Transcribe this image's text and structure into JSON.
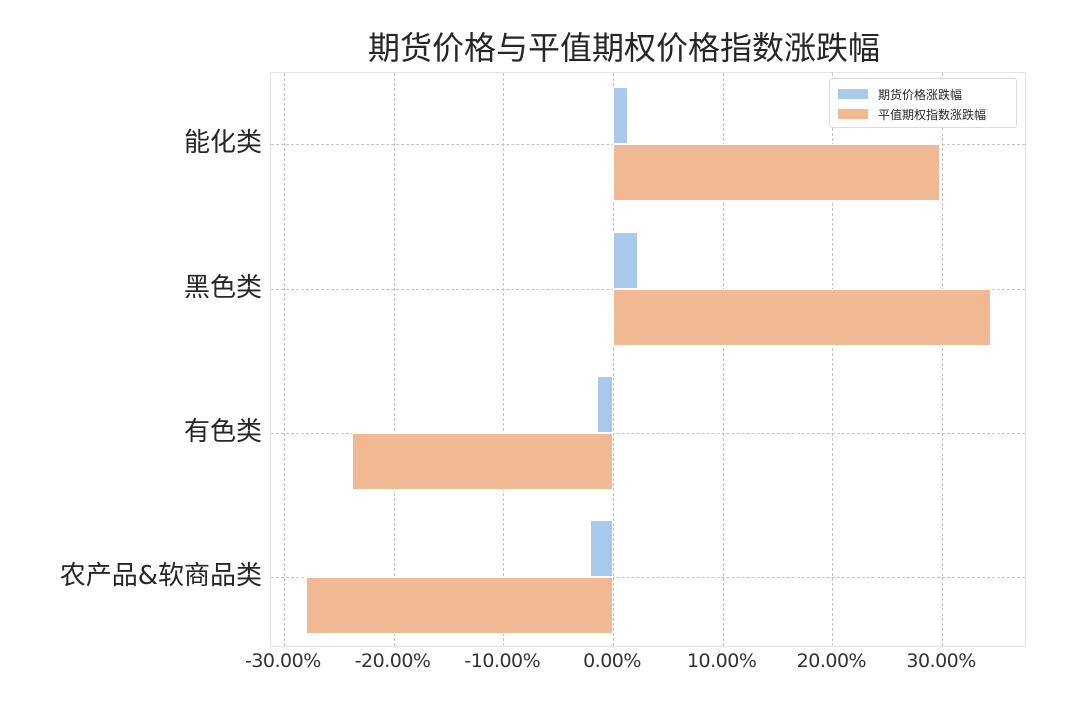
{
  "chart_data": {
    "type": "bar",
    "orientation": "horizontal",
    "title": "期货价格与平值期权价格指数涨跌幅",
    "categories": [
      "能化类",
      "黑色类",
      "有色类",
      "农产品&软商品类"
    ],
    "series": [
      {
        "name": "期货价格涨跌幅",
        "color": "#a8c8ec",
        "values": [
          1.4,
          2.3,
          -1.5,
          -2.1
        ]
      },
      {
        "name": "平值期权指数涨跌幅",
        "color": "#f0b893",
        "values": [
          29.8,
          34.5,
          -23.8,
          -28.0
        ]
      }
    ],
    "xlabel": "",
    "ylabel": "",
    "xlim": [
      -31.2,
      37.7
    ],
    "xticks": [
      -30,
      -20,
      -10,
      0,
      10,
      20,
      30
    ],
    "xtick_labels": [
      "-30.00%",
      "-20.00%",
      "-10.00%",
      "0.00%",
      "10.00%",
      "20.00%",
      "30.00%"
    ],
    "grid": true,
    "legend_position": "upper right"
  },
  "legend": {
    "items": [
      {
        "label": "期货价格涨跌幅",
        "color": "#a8c8ec"
      },
      {
        "label": "平值期权指数涨跌幅",
        "color": "#f0b893"
      }
    ]
  }
}
